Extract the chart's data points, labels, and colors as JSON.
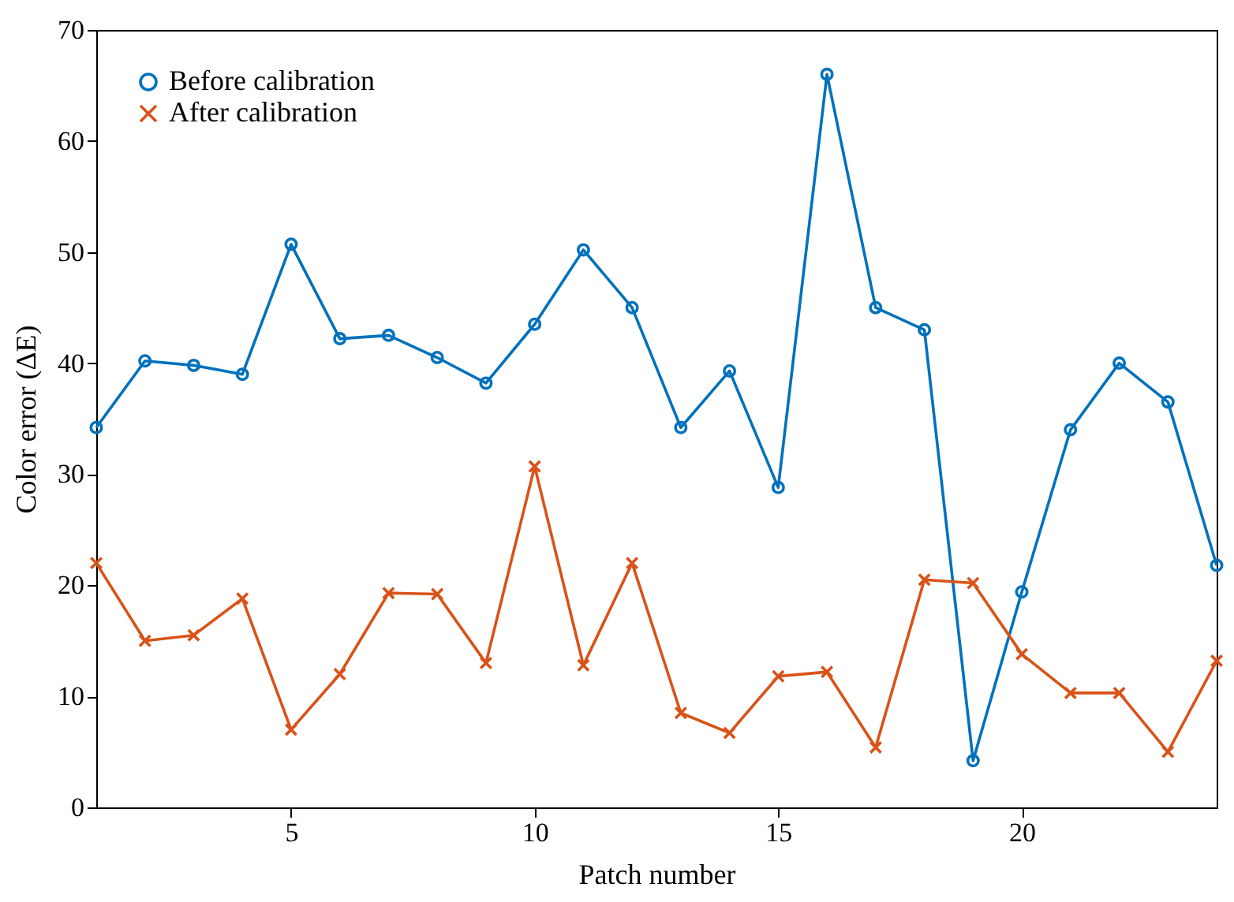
{
  "chart_data": {
    "type": "line",
    "xlabel": "Patch number",
    "ylabel": "Color error (ΔE)",
    "x": [
      1,
      2,
      3,
      4,
      5,
      6,
      7,
      8,
      9,
      10,
      11,
      12,
      13,
      14,
      15,
      16,
      17,
      18,
      19,
      20,
      21,
      22,
      23,
      24
    ],
    "xlim": [
      1,
      24
    ],
    "xticks": [
      5,
      10,
      15,
      20
    ],
    "ylim": [
      0,
      70
    ],
    "yticks": [
      0,
      10,
      20,
      30,
      40,
      50,
      60,
      70
    ],
    "legend": "top left",
    "grid": false,
    "line_style": "solid",
    "series": [
      {
        "name": "Before calibration",
        "color": "#0072bd",
        "marker": "circle",
        "values": [
          34.2,
          40.2,
          39.8,
          39,
          50.7,
          42.2,
          42.5,
          40.5,
          38.2,
          43.5,
          50.2,
          45,
          34.2,
          39.3,
          28.8,
          66,
          45,
          43,
          4.2,
          19.4,
          34,
          40,
          36.5,
          21.8
        ]
      },
      {
        "name": "After calibration",
        "color": "#d95319",
        "marker": "cross",
        "values": [
          22,
          15,
          15.5,
          18.8,
          7,
          12,
          19.3,
          19.2,
          13,
          30.7,
          12.8,
          22,
          8.5,
          6.7,
          11.8,
          12.2,
          5.4,
          20.5,
          20.2,
          13.8,
          10.3,
          10.3,
          5,
          13.2
        ]
      }
    ]
  }
}
